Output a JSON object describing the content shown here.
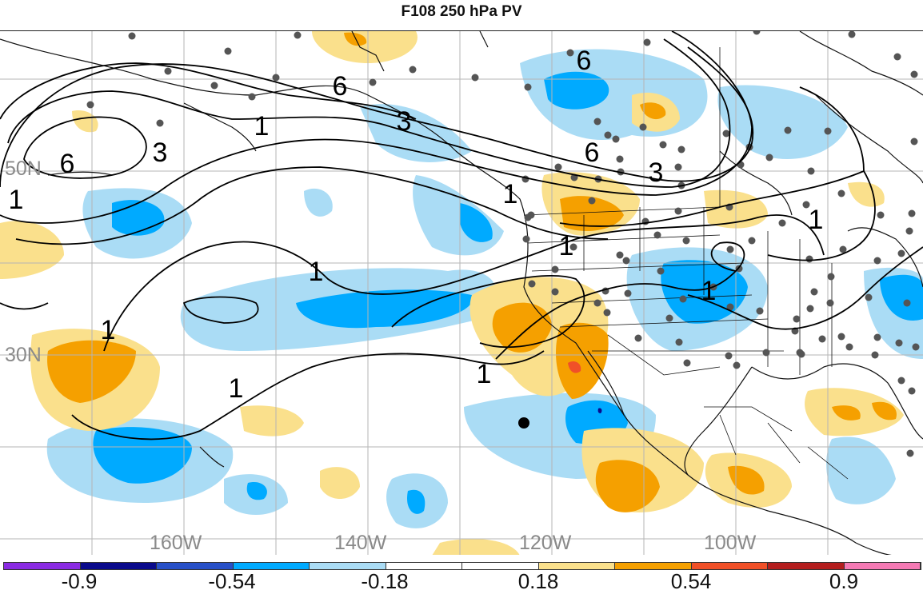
{
  "title": "F108 250 hPa PV",
  "lat_labels": [
    "50N",
    "30N"
  ],
  "lon_labels": [
    "160W",
    "140W",
    "120W",
    "100W"
  ],
  "contour_labels": [
    "6",
    "6",
    "6",
    "6",
    "3",
    "3",
    "3",
    "1",
    "1",
    "1",
    "1",
    "1",
    "1",
    "1",
    "1",
    "1",
    "1"
  ],
  "colorbar": {
    "colors": [
      "#8a2be2",
      "#0a0a8c",
      "#2850c8",
      "#00aaff",
      "#aadcf5",
      "#ffffff",
      "#ffffff",
      "#fae08c",
      "#f5a000",
      "#f05028",
      "#b41e1e",
      "#f57ab4"
    ],
    "tick_labels": [
      "-0.9",
      "-0.54",
      "-0.18",
      "0.18",
      "0.54",
      "0.9"
    ]
  }
}
